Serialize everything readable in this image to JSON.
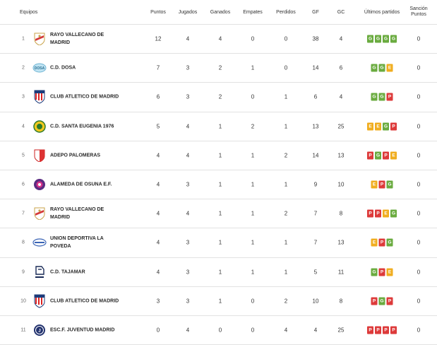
{
  "headers": {
    "team": "Equipos",
    "points": "Puntos",
    "played": "Jugados",
    "won": "Ganados",
    "drawn": "Empates",
    "lost": "Perdidos",
    "gf": "GF",
    "gc": "GC",
    "last": "Últimos partidos",
    "sanction_1": "Sanción",
    "sanction_2": "Puntos"
  },
  "colors": {
    "G": "#6aab3f",
    "E": "#f0ad1f",
    "P": "#dd3a3a"
  },
  "rows": [
    {
      "pos": "1",
      "name1": "RAYO VALLECANO DE",
      "name2": "MADRID",
      "logo": "rayo-vallecano-crest-icon",
      "pts": "12",
      "pj": "4",
      "g": "4",
      "e": "0",
      "p": "0",
      "gf": "38",
      "gc": "4",
      "form": [
        "G",
        "G",
        "G",
        "G"
      ],
      "san": "0"
    },
    {
      "pos": "2",
      "name1": "C.D. DOSA",
      "name2": "",
      "logo": "cd-dosa-crest-icon",
      "pts": "7",
      "pj": "3",
      "g": "2",
      "e": "1",
      "p": "0",
      "gf": "14",
      "gc": "6",
      "form": [
        "G",
        "G",
        "E"
      ],
      "san": "0"
    },
    {
      "pos": "3",
      "name1": "CLUB ATLETICO DE MADRID",
      "name2": "",
      "logo": "atletico-madrid-crest-icon",
      "pts": "6",
      "pj": "3",
      "g": "2",
      "e": "0",
      "p": "1",
      "gf": "6",
      "gc": "4",
      "form": [
        "G",
        "G",
        "P"
      ],
      "san": "0"
    },
    {
      "pos": "4",
      "name1": "C.D. SANTA EUGENIA 1976",
      "name2": "",
      "logo": "santa-eugenia-crest-icon",
      "pts": "5",
      "pj": "4",
      "g": "1",
      "e": "2",
      "p": "1",
      "gf": "13",
      "gc": "25",
      "form": [
        "E",
        "E",
        "G",
        "P"
      ],
      "san": "0"
    },
    {
      "pos": "5",
      "name1": "ADEPO PALOMERAS",
      "name2": "",
      "logo": "adepo-palomeras-crest-icon",
      "pts": "4",
      "pj": "4",
      "g": "1",
      "e": "1",
      "p": "2",
      "gf": "14",
      "gc": "13",
      "form": [
        "P",
        "G",
        "P",
        "E"
      ],
      "san": "0"
    },
    {
      "pos": "6",
      "name1": "ALAMEDA DE OSUNA E.F.",
      "name2": "",
      "logo": "alameda-osuna-crest-icon",
      "pts": "4",
      "pj": "3",
      "g": "1",
      "e": "1",
      "p": "1",
      "gf": "9",
      "gc": "10",
      "form": [
        "E",
        "P",
        "G"
      ],
      "san": "0"
    },
    {
      "pos": "7",
      "name1": "RAYO VALLECANO DE",
      "name2": "MADRID",
      "logo": "rayo-vallecano-crest-icon",
      "pts": "4",
      "pj": "4",
      "g": "1",
      "e": "1",
      "p": "2",
      "gf": "7",
      "gc": "8",
      "form": [
        "P",
        "P",
        "E",
        "G"
      ],
      "san": "0"
    },
    {
      "pos": "8",
      "name1": "UNION DEPORTIVA LA",
      "name2": "POVEDA",
      "logo": "ud-poveda-crest-icon",
      "pts": "4",
      "pj": "3",
      "g": "1",
      "e": "1",
      "p": "1",
      "gf": "7",
      "gc": "13",
      "form": [
        "E",
        "P",
        "G"
      ],
      "san": "0"
    },
    {
      "pos": "9",
      "name1": "C.D. TAJAMAR",
      "name2": "",
      "logo": "tajamar-crest-icon",
      "pts": "4",
      "pj": "3",
      "g": "1",
      "e": "1",
      "p": "1",
      "gf": "5",
      "gc": "11",
      "form": [
        "G",
        "P",
        "E"
      ],
      "san": "0"
    },
    {
      "pos": "10",
      "name1": "CLUB ATLETICO DE MADRID",
      "name2": "",
      "logo": "atletico-madrid-crest-icon",
      "pts": "3",
      "pj": "3",
      "g": "1",
      "e": "0",
      "p": "2",
      "gf": "10",
      "gc": "8",
      "form": [
        "P",
        "G",
        "P"
      ],
      "san": "0"
    },
    {
      "pos": "11",
      "name1": "ESC.F. JUVENTUD MADRID",
      "name2": "",
      "logo": "juventud-madrid-crest-icon",
      "pts": "0",
      "pj": "4",
      "g": "0",
      "e": "0",
      "p": "4",
      "gf": "4",
      "gc": "25",
      "form": [
        "P",
        "P",
        "P",
        "P"
      ],
      "san": "0"
    }
  ]
}
